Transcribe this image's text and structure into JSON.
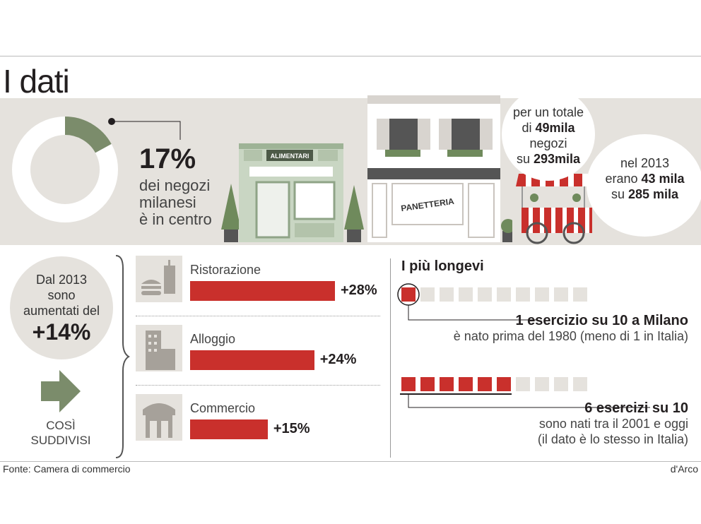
{
  "title": "I dati",
  "top": {
    "share_percent": "17%",
    "share_value": 17,
    "share_text": [
      "dei negozi",
      "milanesi",
      "è in centro"
    ],
    "total_bubble": {
      "line1": "per un totale",
      "pre2": "di ",
      "bold2": "49mila",
      "line3": "negozi",
      "pre4": "su ",
      "bold4": "293mila"
    },
    "bubble_2013": {
      "line1": "nel 2013",
      "pre2": "erano ",
      "bold2": "43 mila",
      "pre3": "su ",
      "bold3": "285 mila"
    },
    "shop_signs": {
      "alimentari": "ALIMENTARI",
      "panetteria": "PANETTERIA"
    }
  },
  "growth": {
    "line1": "Dal 2013",
    "line2": "sono",
    "line3": "aumentati del",
    "value": "+14%",
    "cosi1": "COSÌ",
    "cosi2": "SUDDIVISI"
  },
  "chart_data": {
    "type": "bar",
    "categories": [
      "Ristorazione",
      "Alloggio",
      "Commercio"
    ],
    "values": [
      28,
      24,
      15
    ],
    "labels": [
      "+28%",
      "+24%",
      "+15%"
    ]
  },
  "longevi": {
    "title": "I più longevi",
    "row1": {
      "filled": 1,
      "total": 10,
      "headline": "1 esercizio su 10 a Milano",
      "sub": "è nato prima del 1980 (meno di 1 in Italia)"
    },
    "row2": {
      "filled": 6,
      "total": 10,
      "headline": "6 esercizi su 10",
      "sub1": "sono nati tra il 2001 e oggi",
      "sub2": "(il dato è lo stesso in Italia)"
    }
  },
  "footer": {
    "source": "Fonte: Camera di commercio",
    "credit": "d'Arco"
  },
  "colors": {
    "red": "#c9302c",
    "green": "#7b8c6b",
    "band": "#e5e2dd"
  }
}
